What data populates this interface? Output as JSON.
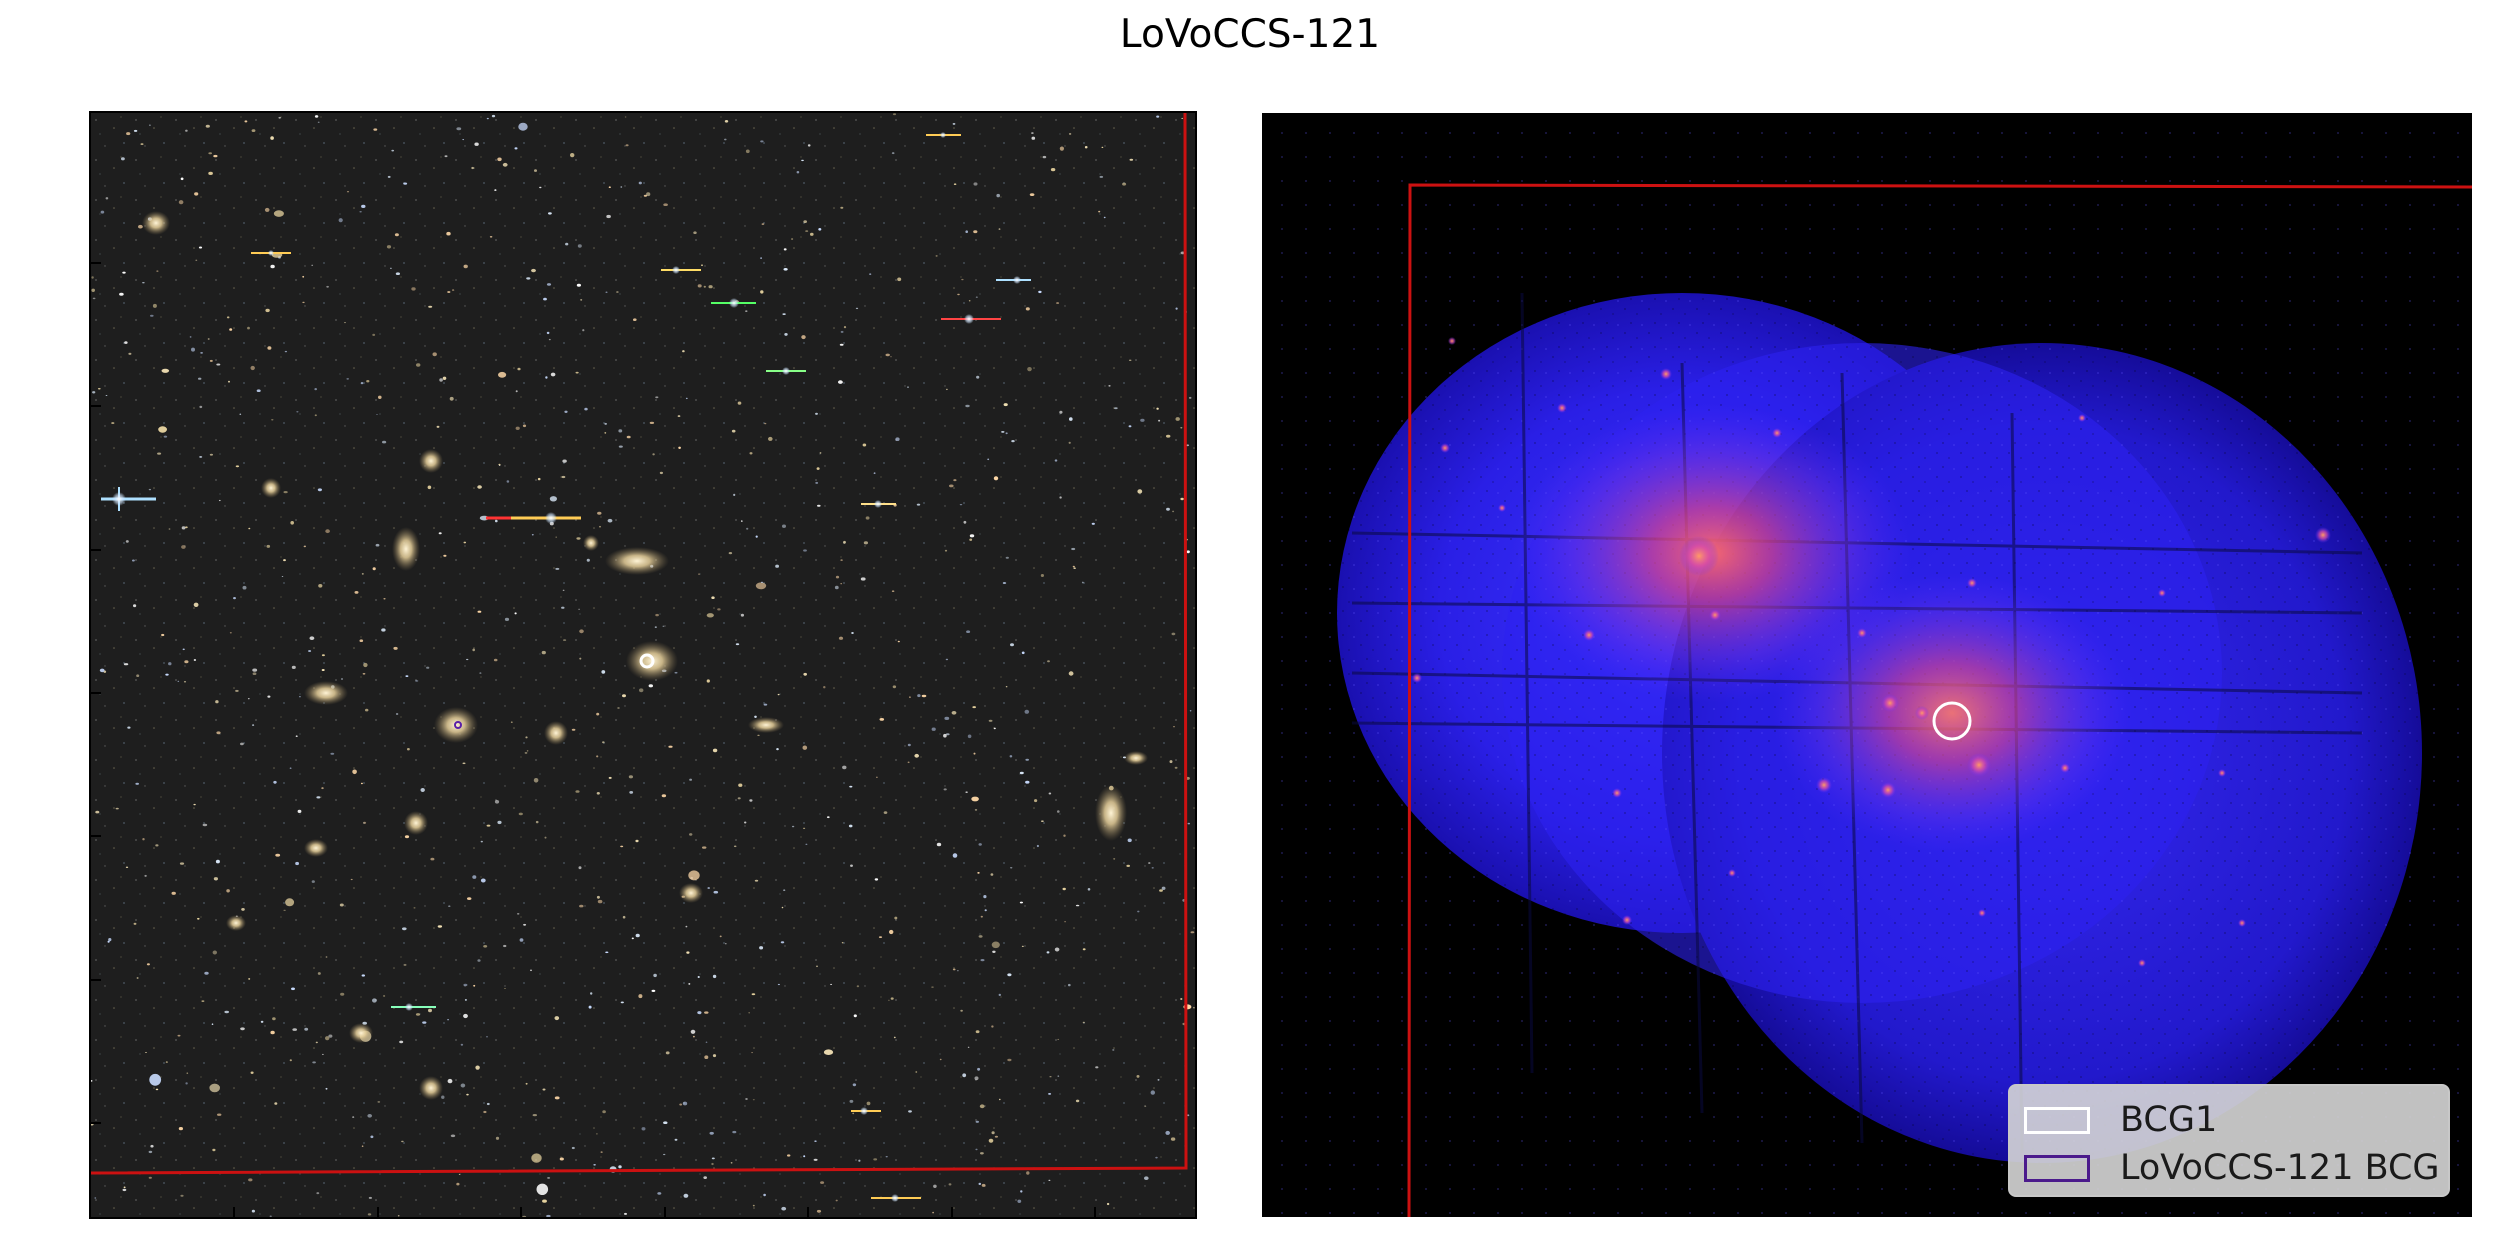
{
  "title": "LoVoCCS-121",
  "panels": {
    "optical": {
      "frame_color": "#cc1111",
      "background": "#1e1e1e"
    },
    "xray": {
      "frame_color": "#cc1111",
      "background": "#000000"
    }
  },
  "legend": {
    "items": [
      {
        "label": "BCG1",
        "color": "#ffffff"
      },
      {
        "label": "LoVoCCS-121 BCG",
        "color": "#4b1a8c"
      }
    ]
  }
}
